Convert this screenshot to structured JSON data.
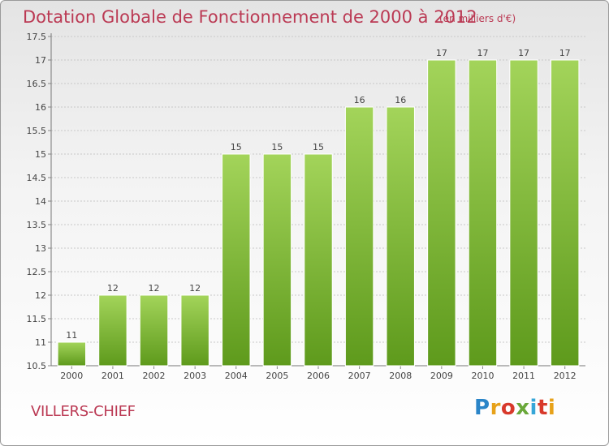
{
  "title": "Dotation Globale de Fonctionnement de 2000 à 2012",
  "subtitle": "(en milliers d'€)",
  "commune": "VILLERS-CHIEF",
  "logo": {
    "text": "Proxiti",
    "colors": [
      "#2a85c8",
      "#e7a21a",
      "#d8392b",
      "#6aa83a",
      "#36a6d8"
    ]
  },
  "colors": {
    "title": "#bb3a54",
    "bar_light": "#a3d45a",
    "bar_dark": "#5e9a1c",
    "grid": "#c8c8c8"
  },
  "chart_data": {
    "type": "bar",
    "title": "Dotation Globale de Fonctionnement de 2000 à 2012",
    "subtitle": "(en milliers d'€)",
    "categories": [
      "2000",
      "2001",
      "2002",
      "2003",
      "2004",
      "2005",
      "2006",
      "2007",
      "2008",
      "2009",
      "2010",
      "2011",
      "2012"
    ],
    "values": [
      11,
      12,
      12,
      12,
      15,
      15,
      15,
      16,
      16,
      17,
      17,
      17,
      17
    ],
    "data_labels": [
      "11",
      "12",
      "12",
      "12",
      "15",
      "15",
      "15",
      "16",
      "16",
      "17",
      "17",
      "17",
      "17"
    ],
    "ylim": [
      10.5,
      17.5
    ],
    "yticks": [
      10.5,
      11,
      11.5,
      12,
      12.5,
      13,
      13.5,
      14,
      14.5,
      15,
      15.5,
      16,
      16.5,
      17,
      17.5
    ],
    "ytick_labels": [
      "10.5",
      "11",
      "11.5",
      "12",
      "12.5",
      "13",
      "13.5",
      "14",
      "14.5",
      "15",
      "15.5",
      "16",
      "16.5",
      "17",
      "17.5"
    ],
    "grid": true,
    "legend": "none"
  }
}
